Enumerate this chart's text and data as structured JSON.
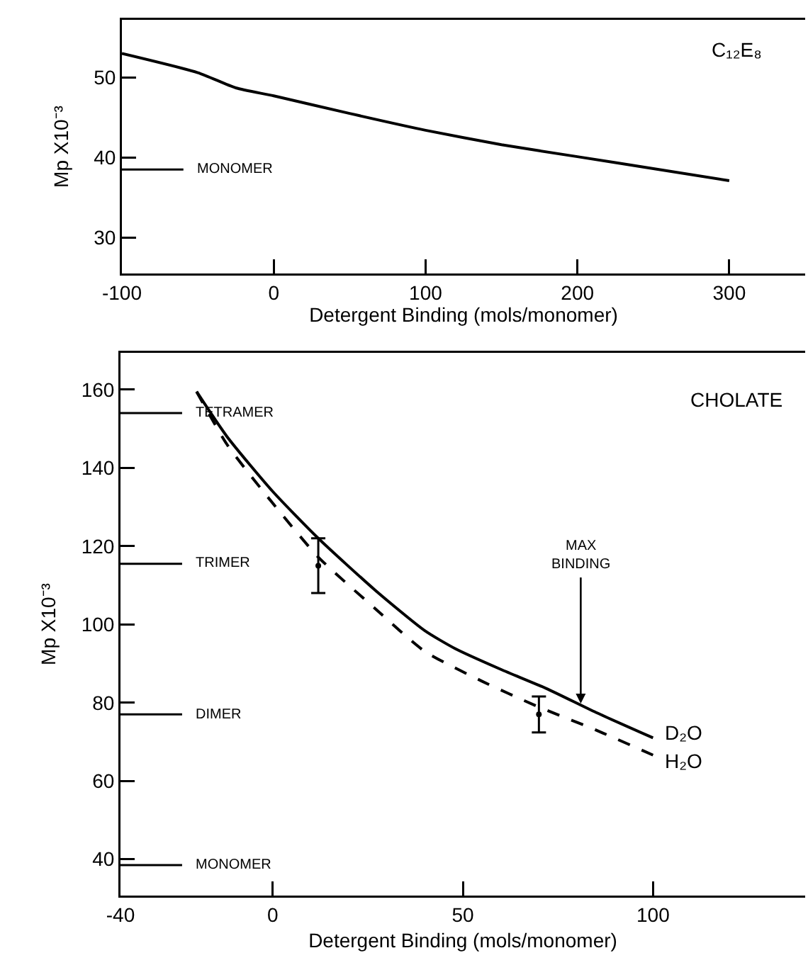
{
  "chart_data": [
    {
      "type": "line",
      "xlabel": "Detergent Binding (mols/monomer)",
      "ylabel": "Mp X10⁻³",
      "xlim": [
        -100,
        350
      ],
      "ylim": [
        25.5,
        57.2
      ],
      "xticks": [
        -100,
        0,
        100,
        200,
        300
      ],
      "yticks": [
        30,
        40,
        50
      ],
      "grid": false,
      "legend": false,
      "marker": "none",
      "series": [
        {
          "color": "#000000",
          "line_style": "solid",
          "x": [
            -100,
            -50,
            -25,
            0,
            50,
            100,
            150,
            200,
            250,
            300
          ],
          "values": [
            53,
            50.6,
            48.7,
            47.7,
            45.5,
            43.4,
            41.6,
            40.1,
            38.6,
            37.1
          ]
        }
      ],
      "ref_lines": [
        {
          "axis": "y",
          "value": 38.5,
          "label": "MONOMER"
        }
      ],
      "annotations": [
        "C₁₂E₈"
      ]
    },
    {
      "type": "line",
      "xlabel": "Detergent Binding (mols/monomer)",
      "ylabel": "Mp X10⁻³",
      "xlim": [
        -40,
        140
      ],
      "ylim": [
        30.7,
        169.4
      ],
      "xticks": [
        -40,
        0,
        50,
        100
      ],
      "yticks": [
        40,
        60,
        80,
        100,
        120,
        140,
        160
      ],
      "grid": false,
      "legend": false,
      "marker": "none",
      "series": [
        {
          "name": "D₂O",
          "color": "#000000",
          "line_style": "solid",
          "x": [
            -20,
            -12,
            0,
            12,
            27,
            40,
            48,
            60,
            72,
            85,
            100
          ],
          "values": [
            159.5,
            148,
            134,
            122,
            108.7,
            98.4,
            93.8,
            88.5,
            83.6,
            77.5,
            71
          ]
        },
        {
          "name": "H₂O",
          "color": "#000000",
          "line_style": "dashed",
          "x": [
            -20,
            -12,
            0,
            12,
            27,
            40,
            55,
            69,
            85,
            100
          ],
          "values": [
            159.5,
            146,
            131,
            117.2,
            104,
            93.1,
            85.5,
            79.3,
            73,
            66.6
          ]
        },
        {
          "type": "scatter",
          "color": "#000000",
          "marker": "circle",
          "x": [
            12,
            70
          ],
          "values": [
            115,
            77
          ],
          "errors": [
            [
              108,
              122
            ],
            [
              72.4,
              81.6
            ]
          ]
        }
      ],
      "ref_lines": [
        {
          "axis": "y",
          "value": 154,
          "label": "TETRAMER"
        },
        {
          "axis": "y",
          "value": 115.5,
          "label": "TRIMER"
        },
        {
          "axis": "y",
          "value": 77,
          "label": "DIMER"
        },
        {
          "axis": "y",
          "value": 38.5,
          "label": "MONOMER"
        }
      ],
      "annotations": [
        "CHOLATE",
        {
          "text": "MAX\nBINDING",
          "x": 81,
          "y": 79.4
        }
      ]
    }
  ]
}
